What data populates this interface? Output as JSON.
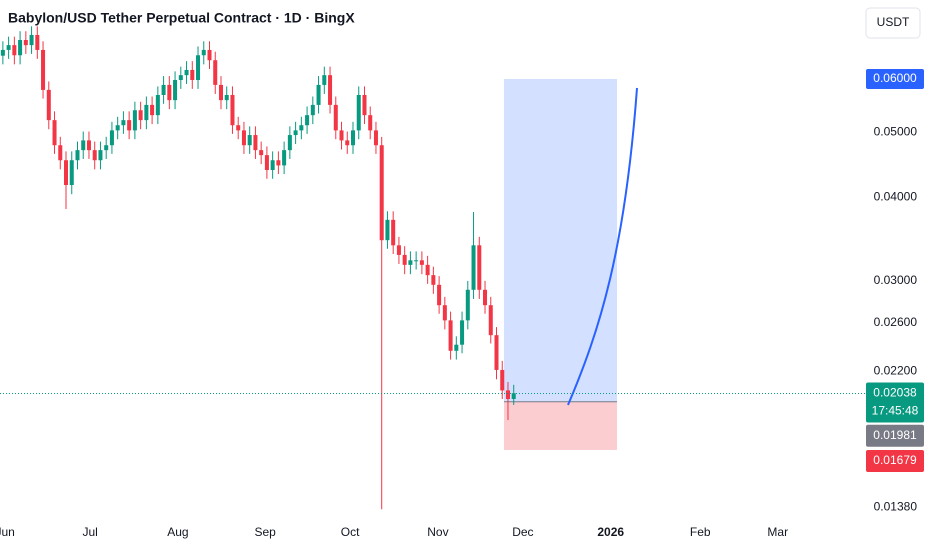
{
  "chart_data": {
    "type": "candlestick",
    "title": "Babylon/USD Tether Perpetual Contract · 1D · BingX",
    "currency": "USDT",
    "log_scale": true,
    "up_color": "#089981",
    "down_color": "#f23645",
    "xlim": [
      -0.5,
      150.2
    ],
    "ylim": [
      0.01343,
      0.0787
    ],
    "xticks": [
      {
        "value": 0.4,
        "label": "Jun"
      },
      {
        "value": 15.2,
        "label": "Jul"
      },
      {
        "value": 30.5,
        "label": "Aug"
      },
      {
        "value": 45.7,
        "label": "Sep"
      },
      {
        "value": 60.5,
        "label": "Oct"
      },
      {
        "value": 75.8,
        "label": "Nov"
      },
      {
        "value": 90.6,
        "label": "Dec"
      },
      {
        "value": 105.9,
        "label": "2026"
      },
      {
        "value": 121.5,
        "label": "Feb"
      },
      {
        "value": 135.0,
        "label": "Mar"
      }
    ],
    "yticks": [
      {
        "value": 0.05,
        "label": "0.05000"
      },
      {
        "value": 0.04,
        "label": "0.04000"
      },
      {
        "value": 0.03,
        "label": "0.03000"
      },
      {
        "value": 0.026,
        "label": "0.02600"
      },
      {
        "value": 0.022,
        "label": "0.02200"
      },
      {
        "value": 0.0138,
        "label": "0.01380"
      }
    ],
    "open": [
      0.065,
      0.0663,
      0.0674,
      0.0651,
      0.0686,
      0.0674,
      0.0698,
      0.0663,
      0.0578,
      0.0521,
      0.0478,
      0.0454,
      0.0417,
      0.0454,
      0.047,
      0.0486,
      0.047,
      0.0454,
      0.047,
      0.0478,
      0.0503,
      0.0512,
      0.0521,
      0.0503,
      0.0539,
      0.0521,
      0.0549,
      0.053,
      0.0568,
      0.0588,
      0.0558,
      0.0598,
      0.0608,
      0.0619,
      0.0598,
      0.0651,
      0.0663,
      0.064,
      0.0588,
      0.0558,
      0.0568,
      0.0512,
      0.0503,
      0.0478,
      0.0495,
      0.047,
      0.0462,
      0.0439,
      0.0454,
      0.0446,
      0.047,
      0.0495,
      0.0503,
      0.0512,
      0.053,
      0.0549,
      0.0588,
      0.0608,
      0.0549,
      0.0503,
      0.0486,
      0.0478,
      0.0503,
      0.0568,
      0.053,
      0.0503,
      0.0478,
      0.0345,
      0.037,
      0.0339,
      0.0328,
      0.0317,
      0.0322,
      0.0322,
      0.0317,
      0.0306,
      0.0296,
      0.0276,
      0.0262,
      0.0236,
      0.0241,
      0.0262,
      0.0291,
      0.0339,
      0.0291,
      0.0276,
      0.0249,
      0.0221,
      0.0206,
      0.02
    ],
    "high": [
      0.0683,
      0.0694,
      0.0694,
      0.0707,
      0.0707,
      0.0719,
      0.0719,
      0.0683,
      0.0595,
      0.0537,
      0.0492,
      0.0468,
      0.0468,
      0.0484,
      0.0501,
      0.0501,
      0.0484,
      0.0484,
      0.0492,
      0.0518,
      0.0527,
      0.0537,
      0.0537,
      0.0555,
      0.0555,
      0.0565,
      0.0565,
      0.0585,
      0.0606,
      0.0606,
      0.0616,
      0.0626,
      0.0638,
      0.0638,
      0.0671,
      0.0683,
      0.0683,
      0.0659,
      0.0606,
      0.0585,
      0.0585,
      0.0527,
      0.0518,
      0.051,
      0.051,
      0.0484,
      0.0476,
      0.0468,
      0.0468,
      0.0484,
      0.051,
      0.0518,
      0.0527,
      0.0546,
      0.0565,
      0.0606,
      0.0626,
      0.0626,
      0.0565,
      0.0518,
      0.0501,
      0.0518,
      0.0585,
      0.0585,
      0.0546,
      0.0518,
      0.0492,
      0.0381,
      0.0381,
      0.0349,
      0.0338,
      0.0332,
      0.0332,
      0.0332,
      0.0327,
      0.0315,
      0.0305,
      0.0284,
      0.027,
      0.0248,
      0.027,
      0.03,
      0.038,
      0.0349,
      0.03,
      0.0284,
      0.0256,
      0.0228,
      0.0212,
      0.021
    ],
    "low": [
      0.0631,
      0.0643,
      0.0631,
      0.0631,
      0.0654,
      0.0654,
      0.0643,
      0.0561,
      0.0505,
      0.0464,
      0.044,
      0.0384,
      0.0404,
      0.044,
      0.0456,
      0.0456,
      0.044,
      0.044,
      0.0456,
      0.0464,
      0.0488,
      0.0497,
      0.0488,
      0.0488,
      0.0505,
      0.0505,
      0.0514,
      0.0514,
      0.0551,
      0.0541,
      0.0541,
      0.058,
      0.059,
      0.058,
      0.058,
      0.0631,
      0.0621,
      0.057,
      0.0541,
      0.0541,
      0.0497,
      0.0488,
      0.0464,
      0.0464,
      0.0456,
      0.0448,
      0.0426,
      0.0426,
      0.0433,
      0.0433,
      0.0456,
      0.048,
      0.0488,
      0.0497,
      0.0514,
      0.0533,
      0.057,
      0.0533,
      0.0488,
      0.0471,
      0.0464,
      0.0464,
      0.0488,
      0.0514,
      0.0488,
      0.0464,
      0.0137,
      0.0335,
      0.0329,
      0.0318,
      0.0307,
      0.0307,
      0.0312,
      0.0307,
      0.0297,
      0.0287,
      0.0268,
      0.0254,
      0.0229,
      0.0229,
      0.0234,
      0.0254,
      0.0282,
      0.0282,
      0.0268,
      0.0242,
      0.0214,
      0.02,
      0.0186,
      0.0196
    ],
    "close": [
      0.0663,
      0.0674,
      0.0651,
      0.0686,
      0.0674,
      0.0698,
      0.0663,
      0.0578,
      0.0521,
      0.0478,
      0.0454,
      0.0417,
      0.0454,
      0.047,
      0.0486,
      0.047,
      0.0454,
      0.047,
      0.0478,
      0.0503,
      0.0512,
      0.0521,
      0.0503,
      0.0539,
      0.0521,
      0.0549,
      0.053,
      0.0568,
      0.0588,
      0.0558,
      0.0598,
      0.0608,
      0.0619,
      0.0598,
      0.0651,
      0.0663,
      0.064,
      0.0588,
      0.0558,
      0.0568,
      0.0512,
      0.0503,
      0.0478,
      0.0495,
      0.047,
      0.0462,
      0.0439,
      0.0454,
      0.0446,
      0.047,
      0.0495,
      0.0503,
      0.0512,
      0.053,
      0.0549,
      0.0588,
      0.0608,
      0.0549,
      0.0503,
      0.0486,
      0.0478,
      0.0503,
      0.0568,
      0.053,
      0.0503,
      0.0478,
      0.0345,
      0.037,
      0.0339,
      0.0328,
      0.0317,
      0.0322,
      0.0322,
      0.0317,
      0.0306,
      0.0296,
      0.0276,
      0.0262,
      0.0236,
      0.0241,
      0.0262,
      0.0291,
      0.0339,
      0.0291,
      0.0276,
      0.0249,
      0.0221,
      0.0206,
      0.02,
      0.0204
    ],
    "last_price": {
      "value": 0.02038,
      "label": "0.02038",
      "countdown": "17:45:48",
      "color": "#089981"
    },
    "position": {
      "x": [
        87.3,
        107.0
      ],
      "target": {
        "value": 0.06,
        "label": "0.06000"
      },
      "entry": {
        "value": 0.01981,
        "label": "0.01981"
      },
      "stop": {
        "value": 0.01679,
        "label": "0.01679"
      },
      "target_color": "#2962ff",
      "entry_color": "#787b86",
      "stop_color": "#f23645"
    }
  }
}
